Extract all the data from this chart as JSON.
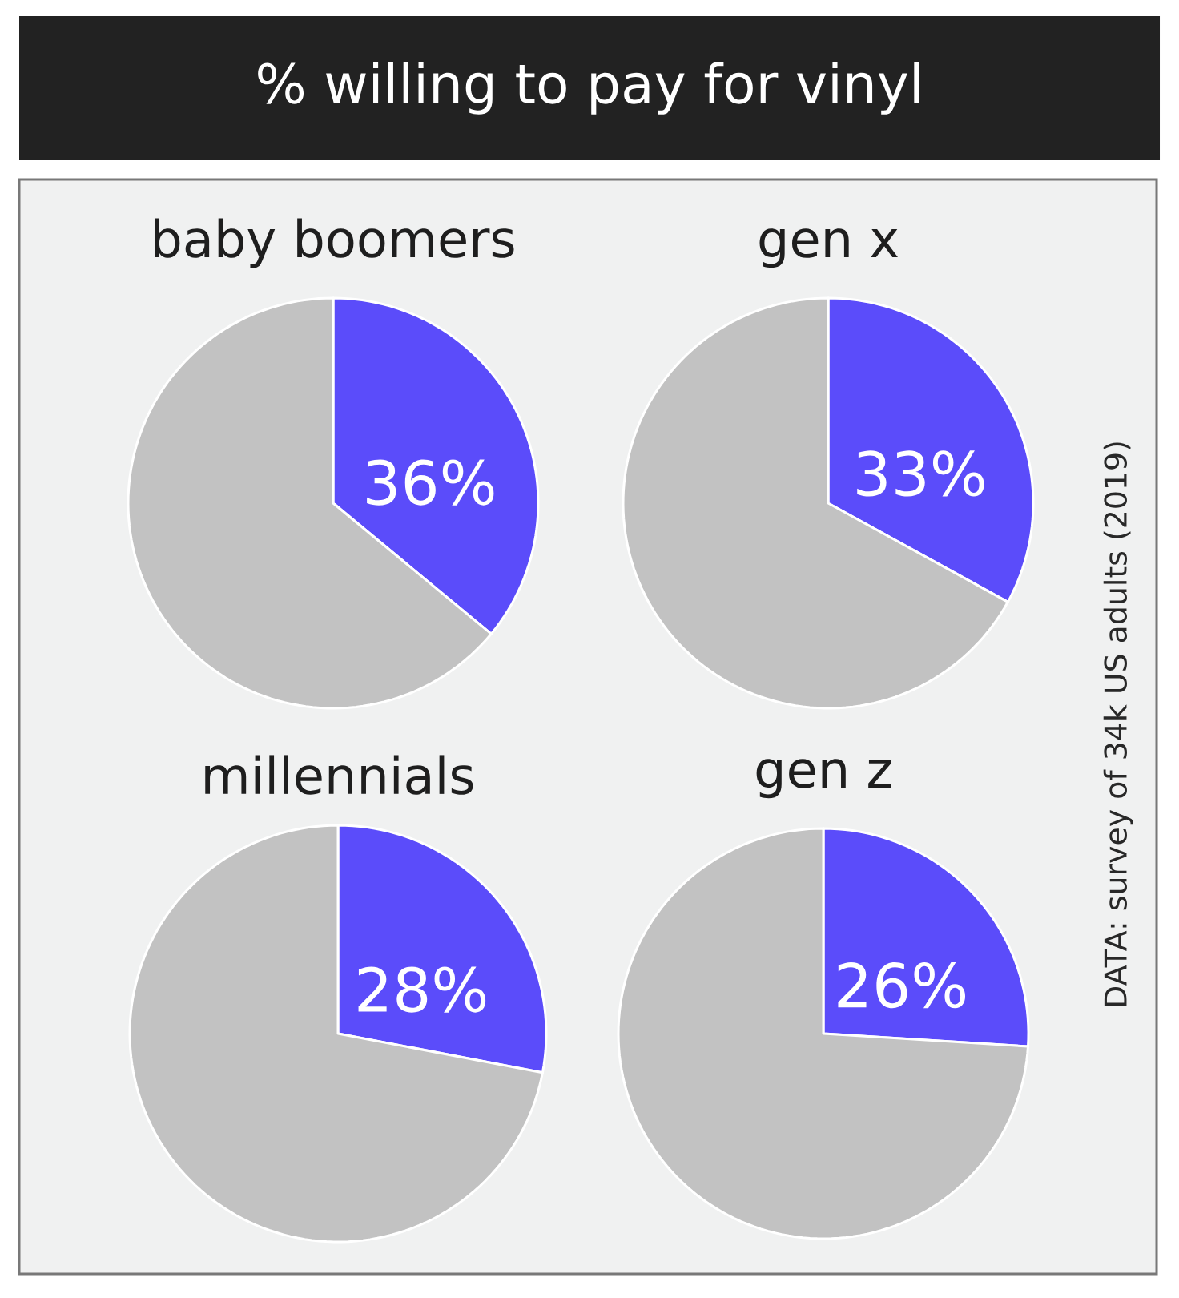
{
  "chart_data": [
    {
      "type": "other",
      "title": "% willing to pay for vinyl",
      "annotations": [
        "DATA: survey of 34k US adults (2019)"
      ]
    },
    {
      "type": "pie",
      "title": "baby boomers",
      "categories": [
        null,
        null
      ],
      "values": [
        36,
        64
      ],
      "colors": [
        "#5b4cfa",
        "#c2c2c2"
      ],
      "value_labels": [
        "36%",
        null
      ]
    },
    {
      "type": "pie",
      "title": "gen x",
      "categories": [
        null,
        null
      ],
      "values": [
        33,
        67
      ],
      "colors": [
        "#5b4cfa",
        "#c2c2c2"
      ],
      "value_labels": [
        "33%",
        null
      ]
    },
    {
      "type": "pie",
      "title": "millennials",
      "categories": [
        null,
        null
      ],
      "values": [
        28,
        72
      ],
      "colors": [
        "#5b4cfa",
        "#c2c2c2"
      ],
      "value_labels": [
        "28%",
        null
      ]
    },
    {
      "type": "pie",
      "title": "gen z",
      "categories": [
        null,
        null
      ],
      "values": [
        26,
        74
      ],
      "colors": [
        "#5b4cfa",
        "#c2c2c2"
      ],
      "value_labels": [
        "26%",
        null
      ]
    }
  ]
}
